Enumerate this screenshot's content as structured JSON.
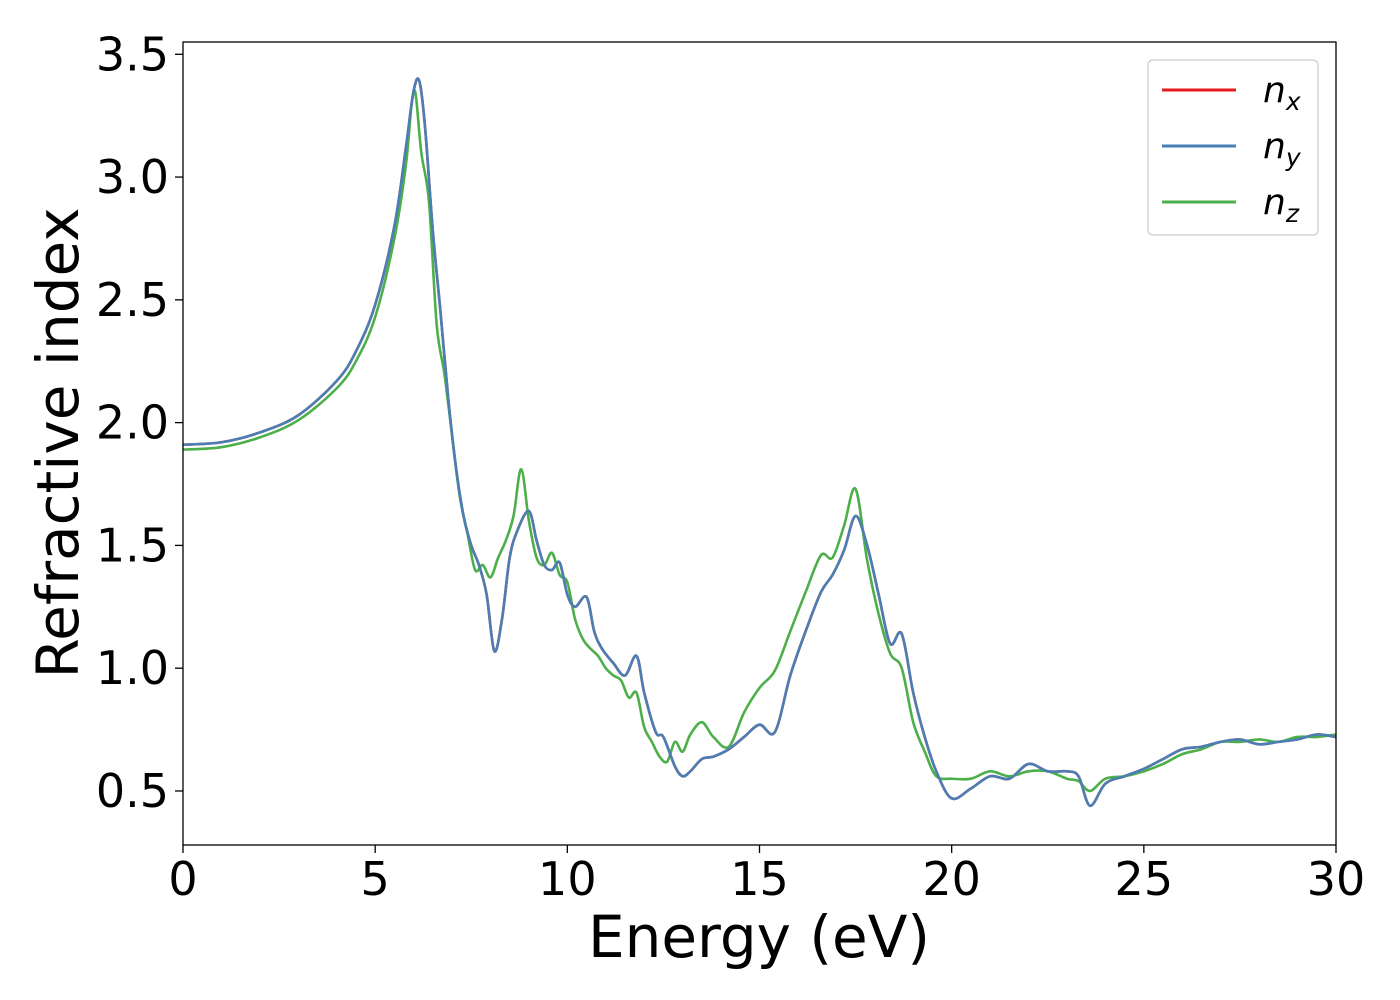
{
  "chart_data": {
    "type": "line",
    "title": "",
    "xlabel": "Energy (eV)",
    "ylabel": "Refractive index",
    "xlim": [
      0,
      30
    ],
    "ylim": [
      0.28,
      3.55
    ],
    "x_ticks": [
      "0",
      "5",
      "10",
      "15",
      "20",
      "25",
      "30"
    ],
    "y_ticks": [
      "0.5",
      "1.0",
      "1.5",
      "2.0",
      "2.5",
      "3.0",
      "3.5"
    ],
    "grid": false,
    "legend_position": "top-right",
    "series": [
      {
        "name": "n",
        "subscript": "x",
        "color": "#e41a1c",
        "x": [
          0,
          1,
          2,
          3,
          4,
          4.5,
          5,
          5.5,
          5.8,
          6.0,
          6.15,
          6.3,
          6.5,
          6.7,
          6.9,
          7.1,
          7.3,
          7.5,
          7.7,
          7.9,
          8.1,
          8.3,
          8.5,
          8.7,
          9.0,
          9.2,
          9.4,
          9.6,
          9.8,
          10.0,
          10.2,
          10.5,
          10.7,
          10.9,
          11.2,
          11.5,
          11.8,
          12.0,
          12.3,
          12.5,
          12.8,
          13.0,
          13.2,
          13.5,
          13.8,
          14.2,
          14.6,
          15.0,
          15.4,
          15.8,
          16.2,
          16.6,
          16.9,
          17.2,
          17.5,
          17.8,
          18.1,
          18.4,
          18.7,
          19.0,
          19.3,
          19.6,
          20.0,
          20.5,
          21.0,
          21.5,
          22.0,
          22.5,
          23.0,
          23.3,
          23.6,
          24.0,
          24.5,
          25.0,
          25.5,
          26.0,
          26.5,
          27.0,
          27.5,
          28.0,
          28.5,
          29.0,
          29.5,
          30.0
        ],
        "values": [
          1.91,
          1.92,
          1.96,
          2.03,
          2.17,
          2.29,
          2.48,
          2.8,
          3.12,
          3.35,
          3.39,
          3.2,
          2.78,
          2.45,
          2.1,
          1.82,
          1.62,
          1.5,
          1.42,
          1.3,
          1.07,
          1.2,
          1.45,
          1.56,
          1.64,
          1.52,
          1.42,
          1.4,
          1.43,
          1.3,
          1.25,
          1.29,
          1.15,
          1.08,
          1.02,
          0.97,
          1.05,
          0.9,
          0.74,
          0.72,
          0.6,
          0.56,
          0.58,
          0.63,
          0.64,
          0.67,
          0.72,
          0.77,
          0.74,
          0.97,
          1.15,
          1.31,
          1.38,
          1.48,
          1.62,
          1.5,
          1.3,
          1.1,
          1.14,
          0.9,
          0.72,
          0.58,
          0.47,
          0.51,
          0.56,
          0.55,
          0.61,
          0.58,
          0.58,
          0.56,
          0.44,
          0.53,
          0.56,
          0.59,
          0.63,
          0.67,
          0.68,
          0.7,
          0.71,
          0.69,
          0.7,
          0.71,
          0.73,
          0.72
        ]
      },
      {
        "name": "n",
        "subscript": "y",
        "color": "#4a7fb5",
        "x": [
          0,
          1,
          2,
          3,
          4,
          4.5,
          5,
          5.5,
          5.8,
          6.0,
          6.15,
          6.3,
          6.5,
          6.7,
          6.9,
          7.1,
          7.3,
          7.5,
          7.7,
          7.9,
          8.1,
          8.3,
          8.5,
          8.7,
          9.0,
          9.2,
          9.4,
          9.6,
          9.8,
          10.0,
          10.2,
          10.5,
          10.7,
          10.9,
          11.2,
          11.5,
          11.8,
          12.0,
          12.3,
          12.5,
          12.8,
          13.0,
          13.2,
          13.5,
          13.8,
          14.2,
          14.6,
          15.0,
          15.4,
          15.8,
          16.2,
          16.6,
          16.9,
          17.2,
          17.5,
          17.8,
          18.1,
          18.4,
          18.7,
          19.0,
          19.3,
          19.6,
          20.0,
          20.5,
          21.0,
          21.5,
          22.0,
          22.5,
          23.0,
          23.3,
          23.6,
          24.0,
          24.5,
          25.0,
          25.5,
          26.0,
          26.5,
          27.0,
          27.5,
          28.0,
          28.5,
          29.0,
          29.5,
          30.0
        ],
        "values": [
          1.91,
          1.92,
          1.96,
          2.03,
          2.17,
          2.29,
          2.48,
          2.8,
          3.12,
          3.35,
          3.39,
          3.2,
          2.78,
          2.45,
          2.1,
          1.82,
          1.62,
          1.5,
          1.42,
          1.3,
          1.07,
          1.2,
          1.45,
          1.56,
          1.64,
          1.52,
          1.42,
          1.4,
          1.43,
          1.3,
          1.25,
          1.29,
          1.15,
          1.08,
          1.02,
          0.97,
          1.05,
          0.9,
          0.74,
          0.72,
          0.6,
          0.56,
          0.58,
          0.63,
          0.64,
          0.67,
          0.72,
          0.77,
          0.74,
          0.97,
          1.15,
          1.31,
          1.38,
          1.48,
          1.62,
          1.5,
          1.3,
          1.1,
          1.14,
          0.9,
          0.72,
          0.58,
          0.47,
          0.51,
          0.56,
          0.55,
          0.61,
          0.58,
          0.58,
          0.56,
          0.44,
          0.53,
          0.56,
          0.59,
          0.63,
          0.67,
          0.68,
          0.7,
          0.71,
          0.69,
          0.7,
          0.71,
          0.73,
          0.72
        ]
      },
      {
        "name": "n",
        "subscript": "z",
        "color": "#4daf4a",
        "x": [
          0,
          1,
          2,
          3,
          4,
          4.5,
          5,
          5.5,
          5.8,
          5.95,
          6.05,
          6.2,
          6.4,
          6.6,
          6.8,
          7.0,
          7.2,
          7.4,
          7.6,
          7.8,
          8.0,
          8.2,
          8.4,
          8.6,
          8.8,
          9.0,
          9.2,
          9.4,
          9.6,
          9.8,
          10.0,
          10.2,
          10.4,
          10.6,
          10.8,
          11.0,
          11.2,
          11.4,
          11.6,
          11.8,
          12.0,
          12.2,
          12.4,
          12.6,
          12.8,
          13.0,
          13.2,
          13.5,
          13.8,
          14.2,
          14.6,
          15.0,
          15.4,
          15.8,
          16.2,
          16.6,
          16.9,
          17.2,
          17.5,
          17.8,
          18.1,
          18.4,
          18.7,
          19.0,
          19.3,
          19.6,
          20.0,
          20.5,
          21.0,
          21.5,
          22.0,
          22.5,
          23.0,
          23.3,
          23.6,
          24.0,
          24.5,
          25.0,
          25.5,
          26.0,
          26.5,
          27.0,
          27.5,
          28.0,
          28.5,
          29.0,
          29.5,
          30.0
        ],
        "values": [
          1.89,
          1.9,
          1.94,
          2.01,
          2.14,
          2.25,
          2.43,
          2.75,
          3.05,
          3.3,
          3.34,
          3.1,
          2.9,
          2.4,
          2.2,
          1.95,
          1.7,
          1.55,
          1.4,
          1.42,
          1.37,
          1.45,
          1.52,
          1.62,
          1.81,
          1.6,
          1.45,
          1.42,
          1.47,
          1.38,
          1.35,
          1.2,
          1.12,
          1.08,
          1.05,
          1.0,
          0.97,
          0.95,
          0.88,
          0.9,
          0.76,
          0.7,
          0.64,
          0.62,
          0.7,
          0.66,
          0.73,
          0.78,
          0.72,
          0.68,
          0.82,
          0.92,
          0.99,
          1.15,
          1.31,
          1.46,
          1.45,
          1.58,
          1.73,
          1.44,
          1.22,
          1.06,
          1.0,
          0.78,
          0.66,
          0.56,
          0.55,
          0.55,
          0.58,
          0.56,
          0.58,
          0.58,
          0.55,
          0.54,
          0.5,
          0.55,
          0.56,
          0.58,
          0.61,
          0.65,
          0.67,
          0.7,
          0.7,
          0.71,
          0.7,
          0.72,
          0.72,
          0.73
        ]
      }
    ]
  }
}
